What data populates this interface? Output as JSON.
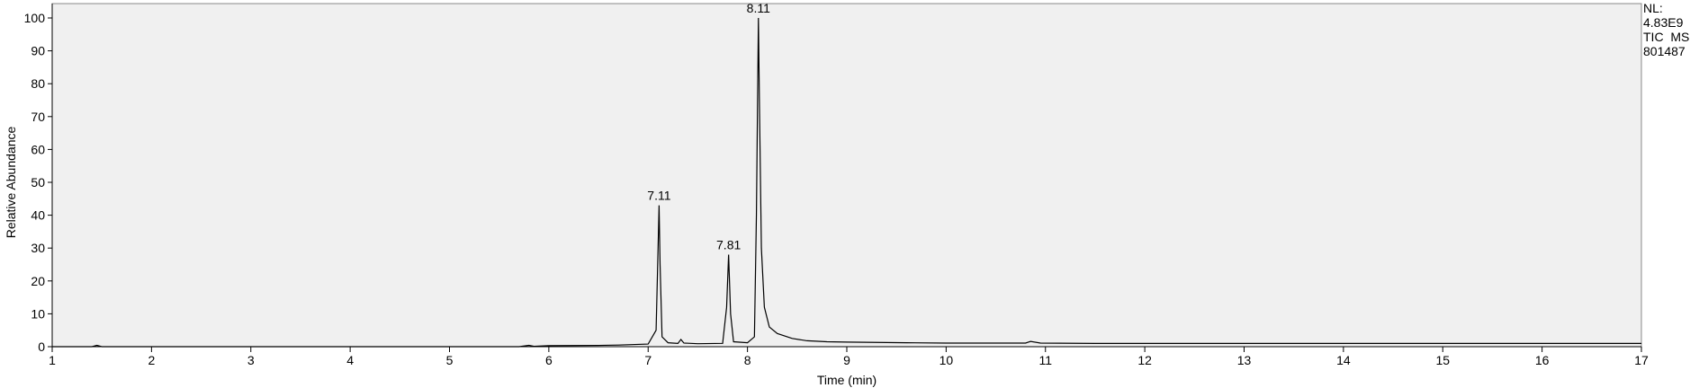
{
  "chart_data": {
    "type": "line",
    "x_label": "Time (min)",
    "y_label": "Relative Abundance",
    "x": [
      1,
      1.4,
      1.45,
      1.5,
      3,
      5.7,
      5.8,
      5.85,
      6.0,
      6.5,
      6.7,
      7.0,
      7.08,
      7.1,
      7.11,
      7.12,
      7.14,
      7.2,
      7.3,
      7.33,
      7.36,
      7.5,
      7.75,
      7.79,
      7.81,
      7.83,
      7.86,
      8.0,
      8.07,
      8.09,
      8.11,
      8.12,
      8.14,
      8.17,
      8.22,
      8.3,
      8.45,
      8.6,
      8.8,
      9.0,
      9.6,
      10.0,
      10.8,
      10.85,
      10.95,
      11.5,
      17
    ],
    "series": [
      {
        "color": "#000000",
        "values": [
          0,
          0,
          0.4,
          0,
          0,
          0,
          0.4,
          0.1,
          0.3,
          0.4,
          0.5,
          0.8,
          5,
          30,
          43,
          25,
          3,
          1.2,
          1.0,
          2.2,
          1.1,
          0.9,
          1.0,
          12,
          28,
          10,
          1.5,
          1.2,
          3,
          40,
          100,
          75,
          30,
          12,
          6,
          4,
          2.5,
          1.8,
          1.5,
          1.4,
          1.2,
          1.1,
          1.1,
          1.6,
          1.1,
          1.0,
          1.0
        ]
      }
    ],
    "xlim": [
      1,
      17
    ],
    "xticks": [
      1,
      2,
      3,
      4,
      5,
      6,
      7,
      8,
      9,
      10,
      11,
      12,
      13,
      14,
      15,
      16,
      17
    ],
    "ylim": [
      0,
      100
    ],
    "yticks": [
      0,
      10,
      20,
      30,
      40,
      50,
      60,
      70,
      80,
      90,
      100
    ],
    "grid": false,
    "annotations": [
      {
        "text": "7.11",
        "x": 7.11,
        "y": 43
      },
      {
        "text": "7.81",
        "x": 7.81,
        "y": 28
      },
      {
        "text": "8.11",
        "x": 8.11,
        "y": 100
      }
    ],
    "side_text": [
      "NL:",
      "4.83E9",
      "TIC  MS",
      "801487"
    ]
  }
}
